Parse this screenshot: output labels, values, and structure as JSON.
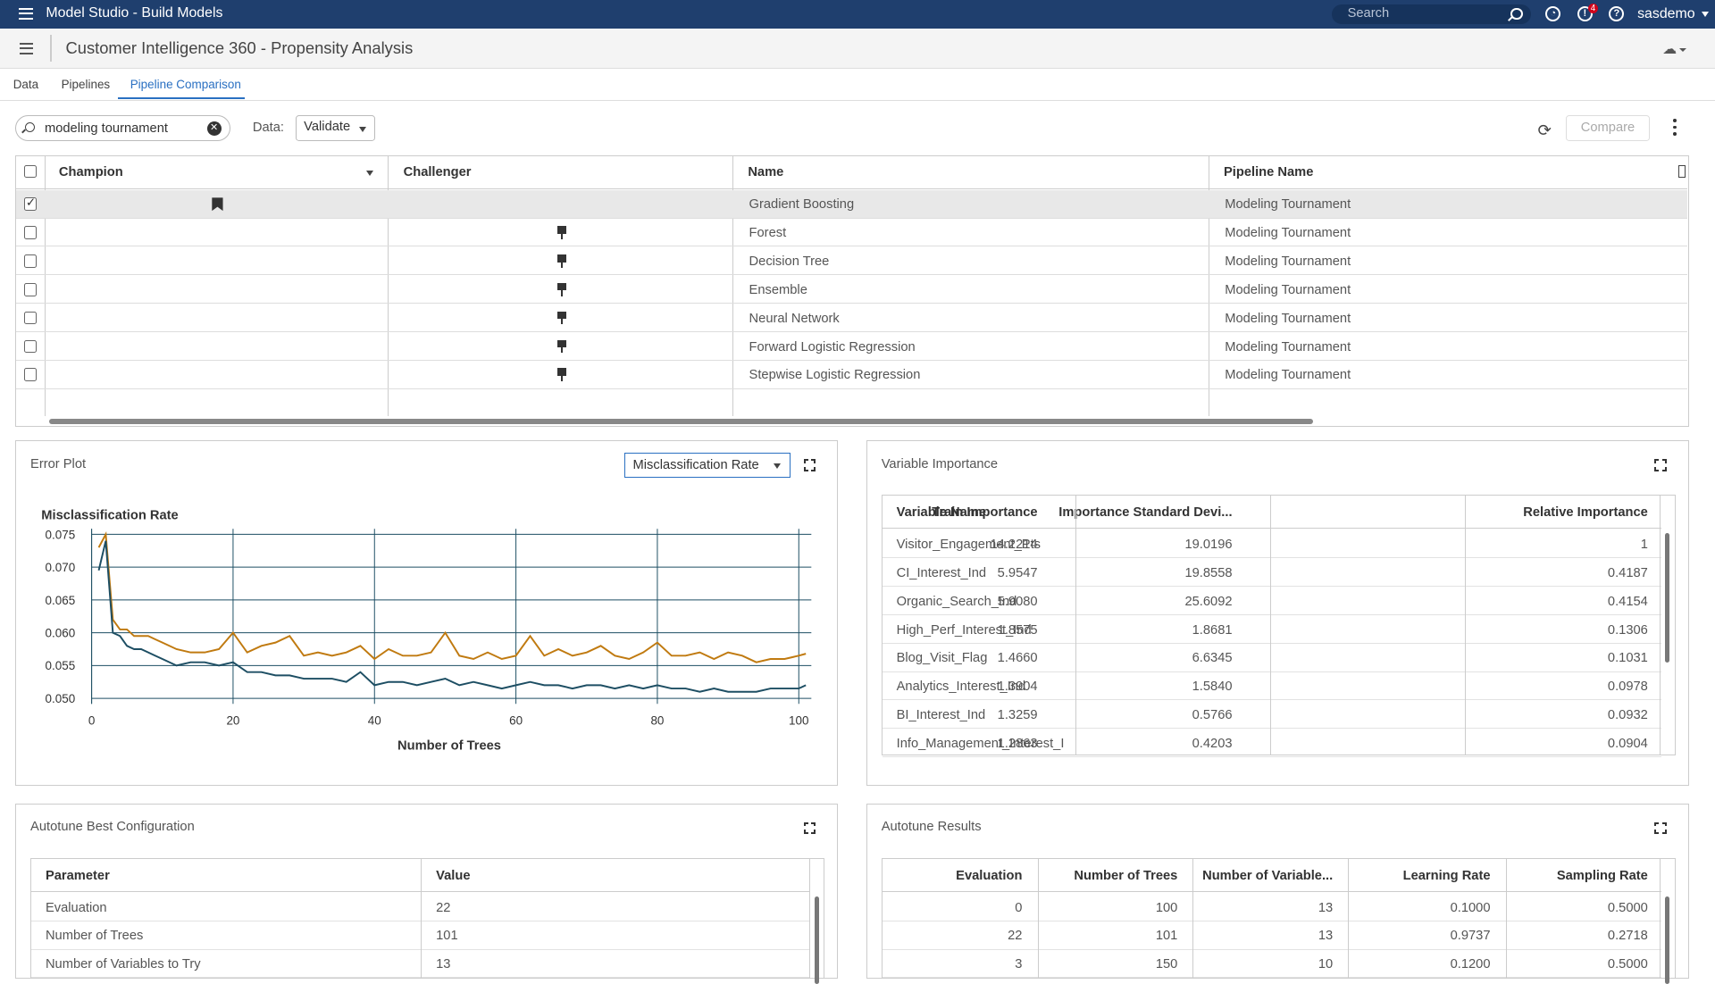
{
  "app": {
    "title": "Model Studio - Build Models",
    "search_placeholder": "Search",
    "notifications_count": "4",
    "user": "sasdemo"
  },
  "project": {
    "title": "Customer Intelligence 360 - Propensity Analysis"
  },
  "tabs": [
    "Data",
    "Pipelines",
    "Pipeline Comparison"
  ],
  "active_tab": "Pipeline Comparison",
  "toolbar": {
    "filter_value": "modeling tournament",
    "data_label": "Data:",
    "data_value": "Validate",
    "compare_label": "Compare"
  },
  "pipelines_table": {
    "columns": [
      "Champion",
      "Challenger",
      "Name",
      "Pipeline Name"
    ],
    "rows": [
      {
        "name": "Gradient Boosting",
        "pipeline": "Modeling Tournament",
        "champion": true,
        "checked": true
      },
      {
        "name": "Forest",
        "pipeline": "Modeling Tournament",
        "champion": false,
        "checked": false
      },
      {
        "name": "Decision Tree",
        "pipeline": "Modeling Tournament",
        "champion": false,
        "checked": false
      },
      {
        "name": "Ensemble",
        "pipeline": "Modeling Tournament",
        "champion": false,
        "checked": false
      },
      {
        "name": "Neural Network",
        "pipeline": "Modeling Tournament",
        "champion": false,
        "checked": false
      },
      {
        "name": "Forward Logistic Regression",
        "pipeline": "Modeling Tournament",
        "champion": false,
        "checked": false
      },
      {
        "name": "Stepwise Logistic Regression",
        "pipeline": "Modeling Tournament",
        "champion": false,
        "checked": false
      }
    ]
  },
  "error_plot": {
    "panel_title": "Error Plot",
    "metric": "Misclassification Rate"
  },
  "chart_data": {
    "type": "line",
    "title": "Misclassification Rate",
    "xlabel": "Number of Trees",
    "ylabel": "",
    "xlim": [
      0,
      101
    ],
    "ylim": [
      0.05,
      0.075
    ],
    "xticks": [
      "0",
      "20",
      "40",
      "60",
      "80",
      "100"
    ],
    "yticks": [
      "0.050",
      "0.055",
      "0.060",
      "0.065",
      "0.070",
      "0.075"
    ],
    "grid": true,
    "series": [
      {
        "color": "#c07a10",
        "x": [
          1,
          2,
          3,
          4,
          5,
          6,
          7,
          8,
          9,
          10,
          12,
          14,
          16,
          18,
          20,
          22,
          24,
          26,
          28,
          30,
          32,
          34,
          36,
          38,
          40,
          42,
          44,
          46,
          48,
          50,
          52,
          54,
          56,
          58,
          60,
          62,
          64,
          66,
          68,
          70,
          72,
          74,
          76,
          78,
          80,
          82,
          84,
          86,
          88,
          90,
          92,
          94,
          96,
          98,
          100,
          101
        ],
        "y": [
          0.073,
          0.075,
          0.062,
          0.0605,
          0.0605,
          0.0595,
          0.0595,
          0.0595,
          0.059,
          0.0585,
          0.0575,
          0.057,
          0.057,
          0.0575,
          0.06,
          0.057,
          0.058,
          0.0585,
          0.0595,
          0.0565,
          0.057,
          0.0565,
          0.057,
          0.058,
          0.056,
          0.0575,
          0.0565,
          0.0565,
          0.057,
          0.06,
          0.0565,
          0.056,
          0.057,
          0.056,
          0.0565,
          0.0595,
          0.0565,
          0.0575,
          0.0565,
          0.057,
          0.058,
          0.0565,
          0.056,
          0.057,
          0.0585,
          0.0565,
          0.0565,
          0.057,
          0.056,
          0.057,
          0.0565,
          0.0555,
          0.056,
          0.056,
          0.0565,
          0.0568
        ]
      },
      {
        "color": "#1d4e63",
        "x": [
          1,
          2,
          3,
          4,
          5,
          6,
          7,
          8,
          9,
          10,
          12,
          14,
          16,
          18,
          20,
          22,
          24,
          26,
          28,
          30,
          32,
          34,
          36,
          38,
          40,
          42,
          44,
          46,
          48,
          50,
          52,
          54,
          56,
          58,
          60,
          62,
          64,
          66,
          68,
          70,
          72,
          74,
          76,
          78,
          80,
          82,
          84,
          86,
          88,
          90,
          92,
          94,
          96,
          98,
          100,
          101
        ],
        "y": [
          0.0695,
          0.074,
          0.06,
          0.0595,
          0.058,
          0.0575,
          0.0575,
          0.057,
          0.0565,
          0.056,
          0.055,
          0.0555,
          0.0555,
          0.055,
          0.0555,
          0.054,
          0.054,
          0.0535,
          0.0535,
          0.053,
          0.053,
          0.053,
          0.0525,
          0.054,
          0.052,
          0.0525,
          0.0525,
          0.052,
          0.0525,
          0.053,
          0.052,
          0.0525,
          0.052,
          0.0515,
          0.052,
          0.0525,
          0.052,
          0.052,
          0.0515,
          0.052,
          0.052,
          0.0515,
          0.052,
          0.0515,
          0.052,
          0.0515,
          0.0515,
          0.051,
          0.0515,
          0.051,
          0.051,
          0.051,
          0.0515,
          0.0515,
          0.0515,
          0.052
        ]
      }
    ]
  },
  "variable_importance": {
    "panel_title": "Variable Importance",
    "columns": [
      "Variable Name",
      "Train Importance",
      "Importance Standard Devi...",
      "Relative Importance"
    ],
    "rows": [
      [
        "Visitor_Engagement_Pts",
        "14.2214",
        "19.0196",
        "1"
      ],
      [
        "CI_Interest_Ind",
        "5.9547",
        "19.8558",
        "0.4187"
      ],
      [
        "Organic_Search_Ind",
        "5.9080",
        "25.6092",
        "0.4154"
      ],
      [
        "High_Perf_Interest_Ind",
        "1.8575",
        "1.8681",
        "0.1306"
      ],
      [
        "Blog_Visit_Flag",
        "1.4660",
        "6.6345",
        "0.1031"
      ],
      [
        "Analytics_Interest_Ind",
        "1.3904",
        "1.5840",
        "0.0978"
      ],
      [
        "BI_Interest_Ind",
        "1.3259",
        "0.5766",
        "0.0932"
      ],
      [
        "Info_Management_Interest_I",
        "1.2863",
        "0.4203",
        "0.0904"
      ]
    ]
  },
  "autotune_best": {
    "panel_title": "Autotune Best Configuration",
    "columns": [
      "Parameter",
      "Value"
    ],
    "rows": [
      [
        "Evaluation",
        "22"
      ],
      [
        "Number of Trees",
        "101"
      ],
      [
        "Number of Variables to Try",
        "13"
      ]
    ]
  },
  "autotune_results": {
    "panel_title": "Autotune Results",
    "columns": [
      "Evaluation",
      "Number of Trees",
      "Number of Variable...",
      "Learning Rate",
      "Sampling Rate"
    ],
    "rows": [
      [
        "0",
        "100",
        "13",
        "0.1000",
        "0.5000"
      ],
      [
        "22",
        "101",
        "13",
        "0.9737",
        "0.2718"
      ],
      [
        "3",
        "150",
        "10",
        "0.1200",
        "0.5000"
      ]
    ]
  }
}
